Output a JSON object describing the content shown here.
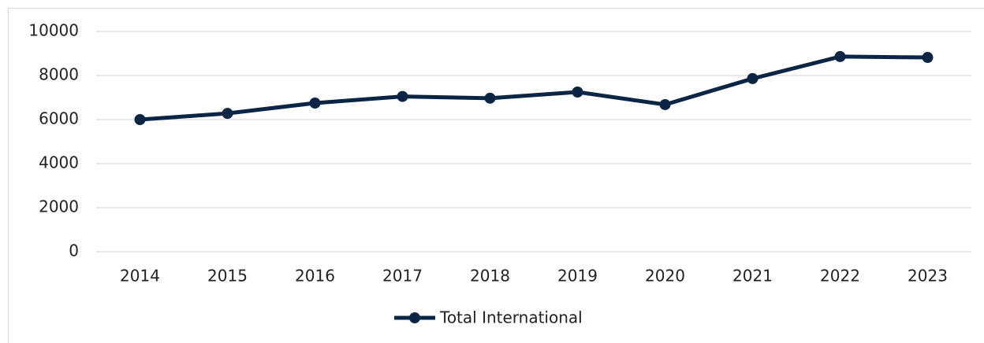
{
  "chart_data": {
    "type": "line",
    "categories": [
      "2014",
      "2015",
      "2016",
      "2017",
      "2018",
      "2019",
      "2020",
      "2021",
      "2022",
      "2023"
    ],
    "series": [
      {
        "name": "Total International",
        "color": "#0b2545",
        "values": [
          6000,
          6280,
          6750,
          7050,
          6970,
          7250,
          6680,
          7860,
          8860,
          8820
        ]
      }
    ],
    "ylim": [
      0,
      10000
    ],
    "yticks": [
      0,
      2000,
      4000,
      6000,
      8000,
      10000
    ],
    "grid": true,
    "legend": "bottom"
  }
}
